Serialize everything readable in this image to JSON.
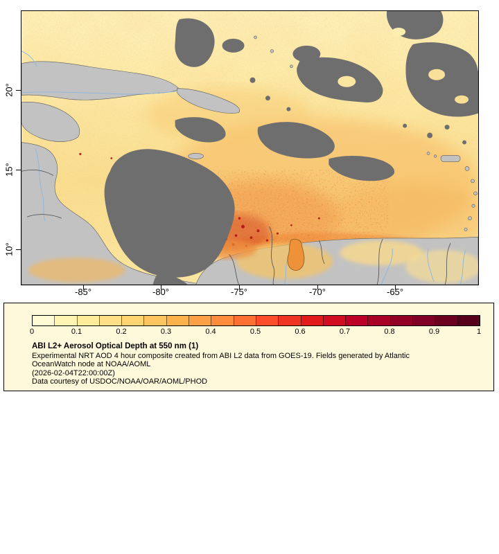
{
  "figure": {
    "axes": {
      "y_ticks": [
        "20°",
        "15°",
        "10°"
      ],
      "x_ticks": [
        "-85°",
        "-80°",
        "-75°",
        "-70°",
        "-65°"
      ]
    },
    "map_colors": {
      "low_aod_field": "#fbe7a1",
      "land": "#c2c2c2",
      "no_data": "#6e6e6e",
      "rivers": "#8fb8dc",
      "high_aod_hotspot": "#b01513"
    }
  },
  "legend": {
    "ticks": [
      "0",
      "0.1",
      "0.2",
      "0.3",
      "0.4",
      "0.5",
      "0.6",
      "0.7",
      "0.8",
      "0.9",
      "1"
    ],
    "colorbar_colors": [
      "#fffbd4",
      "#fff4b1",
      "#ffec9b",
      "#fee187",
      "#fed571",
      "#fec45f",
      "#feb24c",
      "#fda045",
      "#fd8d3c",
      "#fc7034",
      "#fc4e2a",
      "#ef3423",
      "#e31a1c",
      "#d10d21",
      "#bd0026",
      "#a80026",
      "#930026",
      "#800026",
      "#6b0021",
      "#57001b"
    ],
    "title": "ABI L2+ Aerosol Optical Depth at 550 nm (1)",
    "description_line1": "Experimental NRT AOD 4 hour composite created from ABI L2 data from GOES-19. Fields generated by Atlantic",
    "description_line2": "OceanWatch node at NOAA/AOML",
    "timestamp": "(2026-02-04T22:00:00Z)",
    "courtesy": "Data courtesy of USDOC/NOAA/OAR/AOML/PHOD"
  },
  "chart_data": {
    "type": "heatmap",
    "title": "ABI L2+ Aerosol Optical Depth at 550 nm (1)",
    "x_tick_labels": [
      "-85°",
      "-80°",
      "-75°",
      "-70°",
      "-65°"
    ],
    "y_tick_labels": [
      "20°",
      "15°",
      "10°"
    ],
    "colorbar": {
      "range": [
        0,
        1
      ],
      "ticks": [
        0,
        0.1,
        0.2,
        0.3,
        0.4,
        0.5,
        0.6,
        0.7,
        0.8,
        0.9,
        1
      ]
    }
  }
}
